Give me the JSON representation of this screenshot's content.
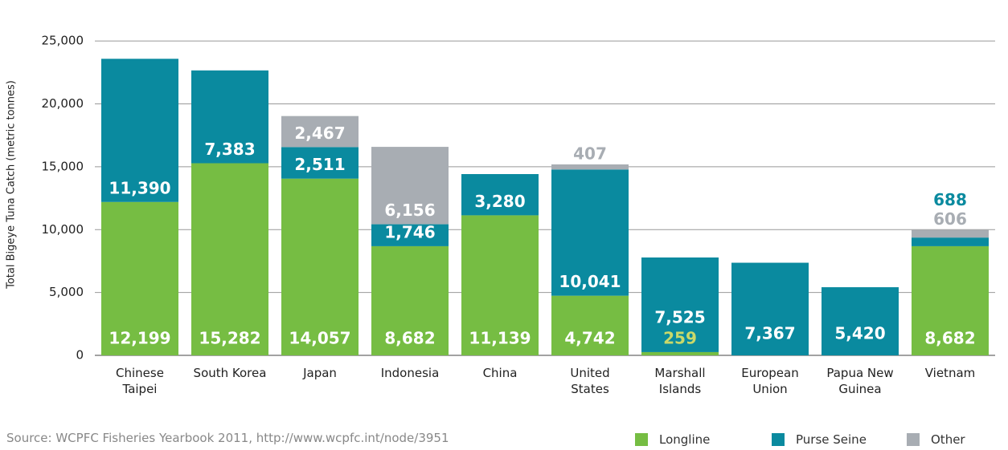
{
  "chart_data": {
    "type": "stacked-bar",
    "y_label": "Total Bigeye Tuna Catch (metric tonnes)",
    "source": "Source: WCPFC Fisheries Yearbook 2011, http://www.wcpfc.int/node/3951",
    "categories": [
      "Chinese Taipei",
      "South Korea",
      "Japan",
      "Indonesia",
      "China",
      "United States",
      "Marshall Islands",
      "European Union",
      "Papua New Guinea",
      "Vietnam"
    ],
    "series": [
      {
        "name": "Longline",
        "color": "#76bd43",
        "values": [
          12199,
          15282,
          14057,
          8682,
          11139,
          4742,
          259,
          null,
          null,
          8682
        ]
      },
      {
        "name": "Purse Seine",
        "color": "#0a8a9f",
        "values": [
          11390,
          7383,
          2511,
          1746,
          3280,
          10041,
          7525,
          7367,
          5420,
          688
        ]
      },
      {
        "name": "Other",
        "color": "#a8adb3",
        "values": [
          null,
          null,
          2467,
          6156,
          null,
          407,
          null,
          null,
          null,
          606
        ]
      }
    ],
    "ylim": [
      0,
      27500
    ],
    "yticks": [
      0,
      {
        "value": 5000,
        "label": "5,000"
      },
      {
        "value": 10000,
        "label": "10,000"
      },
      {
        "value": 15000,
        "label": "15,000"
      },
      {
        "value": 20000,
        "label": "20,000"
      },
      {
        "value": 25000,
        "label": "25,000"
      }
    ],
    "grid": true
  }
}
